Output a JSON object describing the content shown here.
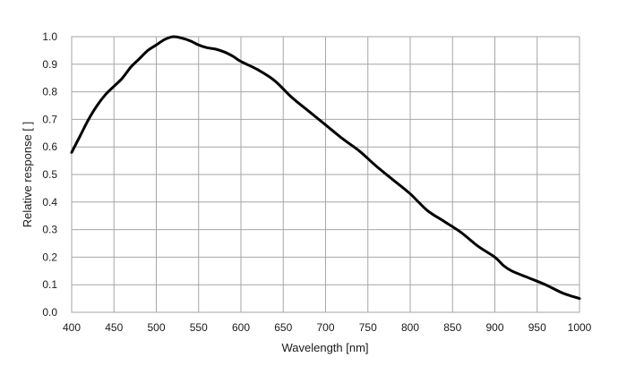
{
  "chart_data": {
    "type": "line",
    "title": "",
    "xlabel": "Wavelength [nm]",
    "ylabel": "Relative response [ ]",
    "xlim": [
      400,
      1000
    ],
    "ylim": [
      0,
      1.0
    ],
    "x_ticks": [
      "400",
      "450",
      "500",
      "550",
      "600",
      "650",
      "700",
      "750",
      "800",
      "850",
      "900",
      "950",
      "1000"
    ],
    "y_ticks": [
      "0.0",
      "0.1",
      "0.2",
      "0.3",
      "0.4",
      "0.5",
      "0.6",
      "0.7",
      "0.8",
      "0.9",
      "1.0"
    ],
    "grid": true,
    "legend": "none",
    "series": [
      {
        "color": "#000000",
        "x": [
          400,
          410,
          420,
          430,
          440,
          450,
          460,
          470,
          480,
          490,
          500,
          510,
          520,
          530,
          540,
          550,
          560,
          570,
          580,
          590,
          600,
          620,
          640,
          660,
          680,
          700,
          720,
          740,
          760,
          780,
          800,
          820,
          840,
          860,
          880,
          900,
          910,
          920,
          940,
          960,
          980,
          1000
        ],
        "y": [
          0.58,
          0.64,
          0.7,
          0.75,
          0.79,
          0.82,
          0.85,
          0.89,
          0.92,
          0.95,
          0.97,
          0.99,
          1.0,
          0.995,
          0.985,
          0.97,
          0.96,
          0.955,
          0.945,
          0.93,
          0.91,
          0.88,
          0.84,
          0.78,
          0.73,
          0.68,
          0.63,
          0.585,
          0.53,
          0.48,
          0.43,
          0.37,
          0.33,
          0.29,
          0.24,
          0.2,
          0.17,
          0.15,
          0.125,
          0.1,
          0.07,
          0.05
        ]
      }
    ]
  }
}
